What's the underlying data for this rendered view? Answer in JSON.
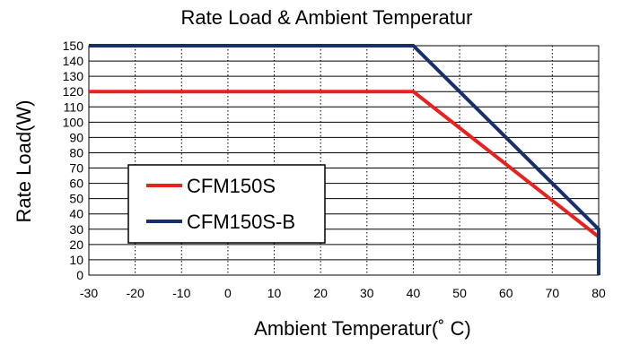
{
  "chart_data": {
    "type": "line",
    "title": "Rate Load & Ambient Temperatur",
    "xlabel": "Ambient Temperatur(˚ C)",
    "ylabel": "Rate Load(W)",
    "xlim": [
      -30,
      80
    ],
    "ylim": [
      0,
      150
    ],
    "x_ticks": [
      -30,
      -20,
      -10,
      0,
      10,
      20,
      30,
      40,
      50,
      60,
      70,
      80
    ],
    "y_ticks": [
      0,
      10,
      20,
      30,
      40,
      50,
      60,
      70,
      80,
      90,
      100,
      110,
      120,
      130,
      140,
      150
    ],
    "grid": {
      "horizontal": "solid",
      "vertical": "dotted"
    },
    "legend_position": "bottom-left",
    "series": [
      {
        "name": "CFM150S",
        "color": "#e8201f",
        "points": [
          [
            -30,
            120
          ],
          [
            40,
            120
          ],
          [
            80,
            25
          ],
          [
            80,
            0
          ]
        ]
      },
      {
        "name": "CFM150S-B",
        "color": "#17306b",
        "points": [
          [
            -30,
            150
          ],
          [
            40,
            150
          ],
          [
            80,
            30
          ],
          [
            80,
            0
          ]
        ]
      }
    ]
  }
}
